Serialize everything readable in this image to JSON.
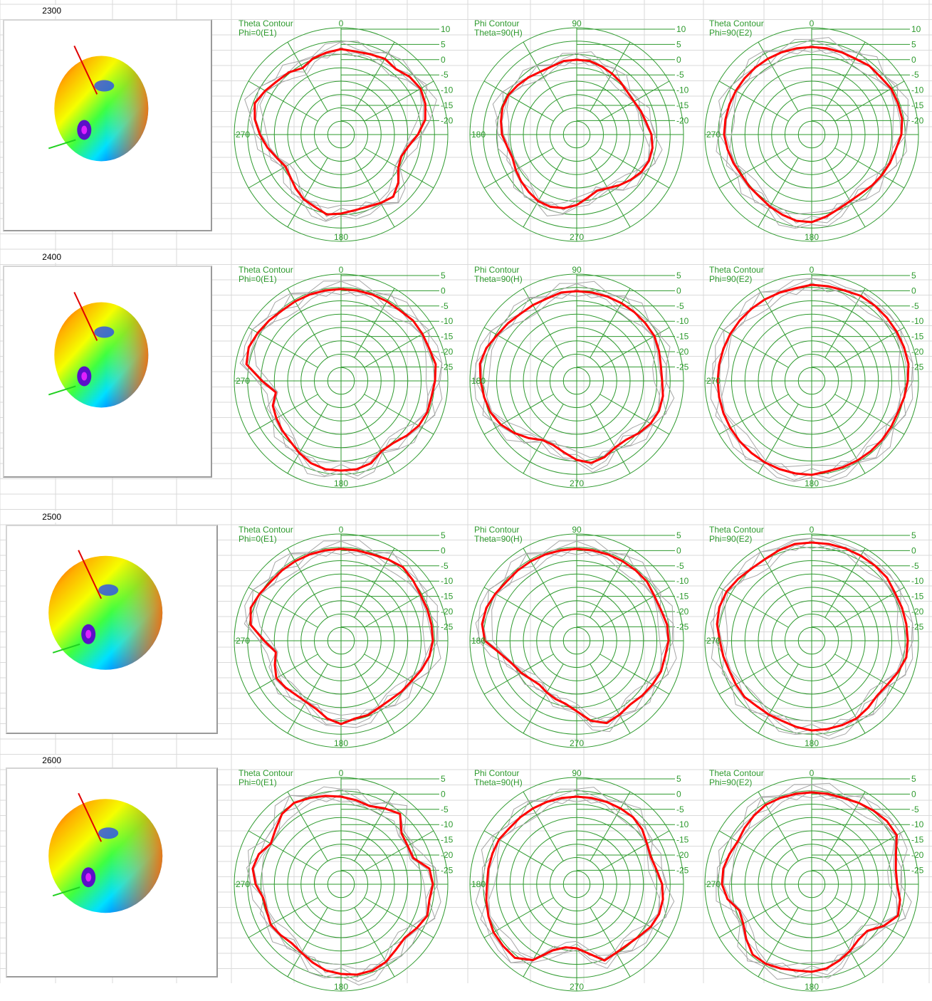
{
  "colors": {
    "grid": "#2e9a2e",
    "text": "#2e9a2e",
    "trace": "#ff0000",
    "ghost": "#a6a6a6",
    "sheet_grid": "#dadada"
  },
  "rows": [
    {
      "label": "2300",
      "ticks": [
        "10",
        "5",
        "0",
        "-5",
        "-10",
        "-15",
        "-20"
      ],
      "charts": [
        {
          "title": [
            "Theta Contour",
            "Phi=0(E1)"
          ],
          "top": "0",
          "left": "270",
          "bottom": "180",
          "trace": [
            0.8,
            0.79,
            0.8,
            0.82,
            0.8,
            0.84,
            0.86,
            0.84,
            0.8,
            0.72,
            0.64,
            0.6,
            0.62,
            0.7,
            0.76,
            0.74,
            0.72,
            0.72,
            0.74,
            0.76,
            0.72,
            0.7,
            0.66,
            0.62,
            0.6,
            0.64,
            0.7,
            0.76,
            0.82,
            0.86,
            0.82,
            0.78,
            0.76,
            0.72,
            0.76,
            0.78
          ]
        },
        {
          "title": [
            "Phi Contour",
            "Theta=90(H)"
          ],
          "top": "90",
          "left": "180",
          "bottom": "270",
          "trace": [
            0.7,
            0.7,
            0.68,
            0.66,
            0.64,
            0.62,
            0.62,
            0.64,
            0.66,
            0.7,
            0.72,
            0.72,
            0.7,
            0.66,
            0.62,
            0.58,
            0.56,
            0.6,
            0.66,
            0.7,
            0.72,
            0.72,
            0.7,
            0.68,
            0.66,
            0.64,
            0.66,
            0.7,
            0.72,
            0.74,
            0.74,
            0.72,
            0.7,
            0.68,
            0.68,
            0.7
          ]
        },
        {
          "title": [
            "Theta Contour",
            "Phi=90(E2)"
          ],
          "top": "0",
          "left": "270",
          "bottom": "180",
          "trace": [
            0.82,
            0.82,
            0.82,
            0.82,
            0.84,
            0.84,
            0.86,
            0.86,
            0.86,
            0.84,
            0.8,
            0.78,
            0.76,
            0.74,
            0.72,
            0.72,
            0.74,
            0.78,
            0.82,
            0.82,
            0.8,
            0.78,
            0.76,
            0.76,
            0.76,
            0.78,
            0.8,
            0.82,
            0.82,
            0.82,
            0.82,
            0.82,
            0.82,
            0.82,
            0.82,
            0.82
          ]
        }
      ]
    },
    {
      "label": "2400",
      "ticks": [
        "5",
        "0",
        "-5",
        "-10",
        "-15",
        "-20",
        "-25"
      ],
      "charts": [
        {
          "title": [
            "Theta Contour",
            "Phi=0(E1)"
          ],
          "top": "0",
          "left": "270",
          "bottom": "180",
          "trace": [
            0.86,
            0.86,
            0.86,
            0.86,
            0.86,
            0.88,
            0.88,
            0.88,
            0.9,
            0.88,
            0.86,
            0.86,
            0.84,
            0.8,
            0.76,
            0.76,
            0.82,
            0.84,
            0.84,
            0.84,
            0.82,
            0.78,
            0.74,
            0.72,
            0.7,
            0.68,
            0.62,
            0.74,
            0.9,
            0.92,
            0.9,
            0.88,
            0.86,
            0.86,
            0.86,
            0.86
          ]
        },
        {
          "title": [
            "Phi Contour",
            "Theta=90(H)"
          ],
          "top": "90",
          "left": "180",
          "bottom": "270",
          "trace": [
            0.84,
            0.84,
            0.84,
            0.84,
            0.84,
            0.84,
            0.84,
            0.82,
            0.8,
            0.8,
            0.82,
            0.82,
            0.8,
            0.76,
            0.72,
            0.72,
            0.76,
            0.78,
            0.74,
            0.68,
            0.64,
            0.64,
            0.7,
            0.76,
            0.82,
            0.86,
            0.88,
            0.9,
            0.92,
            0.9,
            0.86,
            0.84,
            0.82,
            0.82,
            0.82,
            0.84
          ]
        },
        {
          "title": [
            "Theta Contour",
            "Phi=90(E2)"
          ],
          "top": "0",
          "left": "270",
          "bottom": "180",
          "trace": [
            0.9,
            0.9,
            0.9,
            0.92,
            0.92,
            0.92,
            0.92,
            0.92,
            0.92,
            0.9,
            0.88,
            0.86,
            0.86,
            0.86,
            0.86,
            0.86,
            0.86,
            0.86,
            0.88,
            0.88,
            0.88,
            0.88,
            0.88,
            0.88,
            0.88,
            0.88,
            0.88,
            0.88,
            0.88,
            0.88,
            0.88,
            0.88,
            0.88,
            0.88,
            0.88,
            0.88
          ]
        }
      ]
    },
    {
      "label": "2500",
      "ticks": [
        "5",
        "0",
        "-5",
        "-10",
        "-15",
        "-20",
        "-25"
      ],
      "charts": [
        {
          "title": [
            "Theta Contour",
            "Phi=0(E1)"
          ],
          "top": "0",
          "left": "270",
          "bottom": "180",
          "trace": [
            0.86,
            0.86,
            0.86,
            0.88,
            0.9,
            0.88,
            0.86,
            0.86,
            0.86,
            0.86,
            0.84,
            0.8,
            0.76,
            0.74,
            0.72,
            0.72,
            0.74,
            0.74,
            0.78,
            0.74,
            0.68,
            0.66,
            0.66,
            0.68,
            0.7,
            0.66,
            0.62,
            0.72,
            0.86,
            0.9,
            0.88,
            0.86,
            0.86,
            0.86,
            0.86,
            0.86
          ]
        },
        {
          "title": [
            "Phi Contour",
            "Theta=90(H)"
          ],
          "top": "90",
          "left": "180",
          "bottom": "270",
          "trace": [
            0.86,
            0.86,
            0.86,
            0.86,
            0.86,
            0.86,
            0.84,
            0.84,
            0.86,
            0.86,
            0.84,
            0.84,
            0.82,
            0.8,
            0.78,
            0.8,
            0.82,
            0.76,
            0.66,
            0.6,
            0.58,
            0.56,
            0.54,
            0.56,
            0.6,
            0.64,
            0.72,
            0.86,
            0.9,
            0.9,
            0.88,
            0.86,
            0.86,
            0.86,
            0.86,
            0.86
          ]
        },
        {
          "title": [
            "Theta Contour",
            "Phi=90(E2)"
          ],
          "top": "0",
          "left": "270",
          "bottom": "180",
          "trace": [
            0.92,
            0.92,
            0.92,
            0.92,
            0.92,
            0.92,
            0.9,
            0.9,
            0.9,
            0.9,
            0.9,
            0.86,
            0.82,
            0.8,
            0.82,
            0.84,
            0.84,
            0.84,
            0.84,
            0.82,
            0.8,
            0.8,
            0.8,
            0.82,
            0.82,
            0.82,
            0.84,
            0.86,
            0.9,
            0.92,
            0.92,
            0.9,
            0.88,
            0.88,
            0.9,
            0.92
          ]
        }
      ]
    },
    {
      "label": "2600",
      "ticks": [
        "5",
        "0",
        "-5",
        "-10",
        "-15",
        "-20",
        "-25"
      ],
      "charts": [
        {
          "title": [
            "Theta Contour",
            "Phi=0(E1)"
          ],
          "top": "0",
          "left": "270",
          "bottom": "180",
          "trace": [
            0.82,
            0.8,
            0.78,
            0.82,
            0.86,
            0.74,
            0.72,
            0.72,
            0.84,
            0.86,
            0.84,
            0.86,
            0.82,
            0.78,
            0.8,
            0.84,
            0.86,
            0.86,
            0.84,
            0.82,
            0.78,
            0.74,
            0.72,
            0.74,
            0.76,
            0.74,
            0.74,
            0.8,
            0.84,
            0.82,
            0.76,
            0.8,
            0.86,
            0.88,
            0.86,
            0.84
          ]
        },
        {
          "title": [
            "Phi Contour",
            "Theta=90(H)"
          ],
          "top": "90",
          "left": "180",
          "bottom": "270",
          "trace": [
            0.82,
            0.82,
            0.82,
            0.82,
            0.82,
            0.8,
            0.76,
            0.74,
            0.76,
            0.8,
            0.82,
            0.82,
            0.8,
            0.76,
            0.74,
            0.74,
            0.76,
            0.66,
            0.6,
            0.6,
            0.66,
            0.82,
            0.9,
            0.9,
            0.9,
            0.88,
            0.86,
            0.84,
            0.84,
            0.84,
            0.84,
            0.82,
            0.82,
            0.82,
            0.82,
            0.82
          ]
        },
        {
          "title": [
            "Theta Contour",
            "Phi=90(E2)"
          ],
          "top": "0",
          "left": "270",
          "bottom": "180",
          "trace": [
            0.86,
            0.86,
            0.86,
            0.88,
            0.9,
            0.92,
            0.92,
            0.84,
            0.8,
            0.8,
            0.84,
            0.86,
            0.78,
            0.68,
            0.68,
            0.72,
            0.76,
            0.8,
            0.82,
            0.82,
            0.84,
            0.86,
            0.86,
            0.8,
            0.74,
            0.72,
            0.8,
            0.84,
            0.84,
            0.82,
            0.8,
            0.82,
            0.84,
            0.86,
            0.86,
            0.86
          ]
        }
      ]
    }
  ],
  "chart_data": {
    "type": "polar",
    "note_axes": "radial tick labels per row as printed; angle labels top/left/bottom as printed",
    "frequencies": [
      "2300",
      "2400",
      "2500",
      "2600"
    ]
  }
}
